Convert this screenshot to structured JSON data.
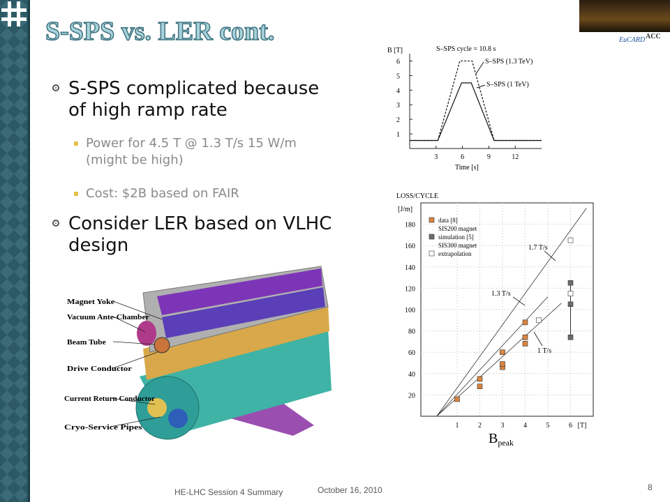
{
  "title": "S-SPS vs. LER cont.",
  "bullets": [
    {
      "text": "S-SPS complicated because of high ramp rate",
      "sub": [
        "Power for 4.5 T @ 1.3 T/s 15 W/m (might be high)",
        "Cost: $2B based on FAIR"
      ]
    },
    {
      "text": "Consider LER based on VLHC design"
    }
  ],
  "logo_text": [
    "EuCARD",
    "ACC"
  ],
  "ramp_plot": {
    "y_label": "B [T]",
    "x_label": "Time [s]",
    "note": "S–SPS cycle = 10.8 s",
    "xlim": [
      0,
      15
    ],
    "ylim": [
      0,
      6.5
    ],
    "xticks": [
      3,
      6,
      9,
      12
    ],
    "yticks": [
      1,
      2,
      3,
      4,
      5,
      6
    ],
    "series": [
      {
        "label": "S–SPS (1.3 TeV)",
        "dashed": true,
        "x": [
          0,
          3.2,
          5.7,
          7.1,
          9.6,
          15
        ],
        "y": [
          0.55,
          0.55,
          6,
          6,
          0.55,
          0.55
        ]
      },
      {
        "label": "S–SPS (1 TeV)",
        "dashed": false,
        "x": [
          0,
          3.2,
          5.9,
          7.0,
          9.6,
          15
        ],
        "y": [
          0.55,
          0.55,
          4.5,
          4.5,
          0.55,
          0.55
        ]
      }
    ]
  },
  "loss_plot": {
    "title": "LOSS/CYCLE",
    "y_unit": "[J/m]",
    "x_unit": "[T]",
    "x_label": "B",
    "x_label_sub": "peak",
    "xlim": [
      -0.6,
      7
    ],
    "ylim": [
      0,
      200
    ],
    "xticks": [
      1,
      2,
      3,
      4,
      5,
      6
    ],
    "yticks": [
      20,
      40,
      60,
      80,
      100,
      120,
      140,
      160,
      180
    ],
    "groups": [
      {
        "label": "data [8]",
        "sub": "SIS200 magnet",
        "color": "#d9843f",
        "open": false,
        "x": [
          1,
          2,
          2,
          3,
          3,
          3,
          4,
          4,
          4
        ],
        "y": [
          16,
          28,
          35,
          46,
          49,
          60,
          68,
          74,
          88
        ]
      },
      {
        "label": "simulation [5]",
        "sub": "SIS300 magnet",
        "color": "#6b6b6b",
        "open": false,
        "x": [
          6,
          6,
          6
        ],
        "y": [
          74,
          105,
          125
        ]
      },
      {
        "label": "extrapolation",
        "color": "#ffffff",
        "open": true,
        "x": [
          4.6,
          6,
          6
        ],
        "y": [
          90,
          115,
          165
        ]
      }
    ],
    "rate_labels": [
      "1.7 T/s",
      "1.3 T/s",
      "1 T/s"
    ]
  },
  "magnet_labels": [
    "Magnet Yoke",
    "Vacuum Ante-Chamber",
    "Beam Tube",
    "Drive Conductor",
    "Current Return Conductor",
    "Cryo-Service Pipes"
  ],
  "footer": {
    "left": "HE-LHC Session 4 Summary",
    "date": "October 16, 2010",
    "page": "8"
  }
}
